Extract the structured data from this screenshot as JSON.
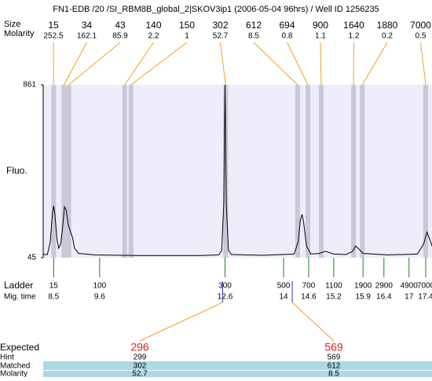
{
  "title": "FN1-EDB /20 /SI_RBM8B_global_2|SKOV3ip1 (2006-05-04 96hrs) / Well ID 1256235",
  "chart_data": {
    "type": "line",
    "ylabel": "Fluo.",
    "ylim": [
      45,
      861
    ],
    "yticks": [
      45,
      861
    ],
    "xlim": [
      8.25,
      17.55
    ],
    "series": [
      {
        "color": "#000000",
        "x": [
          8.25,
          8.35,
          8.42,
          8.47,
          8.5,
          8.53,
          8.58,
          8.62,
          8.67,
          8.72,
          8.76,
          8.8,
          8.85,
          8.9,
          8.95,
          9.0,
          9.1,
          9.5,
          10.5,
          12.0,
          12.45,
          12.52,
          12.57,
          12.6,
          12.63,
          12.68,
          12.75,
          13.5,
          14.25,
          14.35,
          14.4,
          14.44,
          14.48,
          14.55,
          14.65,
          14.85,
          15.0,
          15.05,
          15.2,
          15.5,
          15.65,
          15.72,
          15.78,
          15.9,
          16.5,
          17.2,
          17.35,
          17.43,
          17.5,
          17.55
        ],
        "values": [
          60,
          60,
          120,
          250,
          290,
          250,
          130,
          90,
          110,
          200,
          285,
          270,
          200,
          170,
          140,
          90,
          65,
          58,
          55,
          55,
          58,
          80,
          300,
          861,
          300,
          80,
          60,
          56,
          62,
          120,
          220,
          250,
          210,
          100,
          62,
          65,
          75,
          72,
          62,
          60,
          75,
          100,
          90,
          65,
          58,
          62,
          110,
          165,
          130,
          100
        ]
      }
    ]
  },
  "peaks": {
    "size_label": "Size",
    "molarity_label": "Molarity",
    "sizes": [
      15,
      34,
      43,
      140,
      150,
      302,
      612,
      694,
      900,
      1640,
      1880,
      7000
    ],
    "molarities": [
      252.5,
      162.1,
      85.9,
      2.2,
      1,
      52.7,
      8.5,
      0.8,
      1.1,
      1.2,
      0.2,
      0.5
    ]
  },
  "ladder": {
    "label": "Ladder",
    "time_label": "Mig. time",
    "sizes": [
      15,
      100,
      300,
      500,
      700,
      1100,
      1900,
      2900,
      4900,
      7000
    ],
    "times": [
      8.5,
      9.6,
      12.6,
      14,
      14.6,
      15.2,
      15.9,
      16.4,
      17,
      17.4
    ]
  },
  "expected": {
    "labels": [
      "Expected",
      "Hint",
      "Matched",
      "Molarity"
    ],
    "columns": [
      {
        "expected": 296,
        "hint": 299,
        "matched": 302,
        "molarity": 52.7
      },
      {
        "expected": 569,
        "hint": 569,
        "matched": 612,
        "molarity": 8.5
      }
    ]
  }
}
